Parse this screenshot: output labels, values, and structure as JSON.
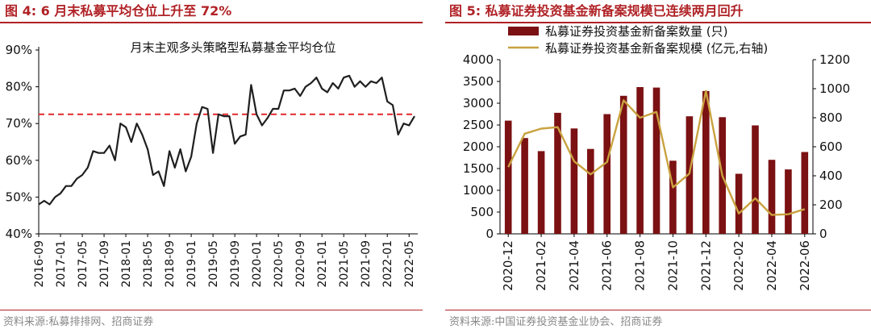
{
  "left_panel": {
    "figure_title": "图 4:  6 月末私募平均仓位上升至 72%",
    "source": "资料来源:私募排排网、招商证券"
  },
  "right_panel": {
    "figure_title": "图 5:  私募证券投资基金新备案规模已连续两月回升",
    "source": "资料来源:中国证券投资基金业协会、招商证券"
  },
  "colors": {
    "brand": "#b02226",
    "bar": "#7b1113",
    "line_gold": "#c9a23f",
    "line_dark": "#1f1f1f",
    "ref_line": "#e0282e"
  },
  "chart_data": [
    {
      "type": "line",
      "title": "月末主观多头策略型私募基金平均仓位",
      "ylim": [
        0.4,
        0.9
      ],
      "yticks": [
        "40%",
        "50%",
        "60%",
        "70%",
        "80%",
        "90%"
      ],
      "reference_line": 0.725,
      "xticklabels": [
        "2016-09",
        "2017-01",
        "2017-05",
        "2017-09",
        "2018-01",
        "2018-05",
        "2018-09",
        "2019-01",
        "2019-05",
        "2019-09",
        "2020-01",
        "2020-05",
        "2020-09",
        "2021-01",
        "2021-05",
        "2021-09",
        "2022-01",
        "2022-05"
      ],
      "start_month": "2016-09",
      "values": [
        0.48,
        0.49,
        0.48,
        0.5,
        0.51,
        0.53,
        0.53,
        0.55,
        0.56,
        0.58,
        0.625,
        0.62,
        0.62,
        0.64,
        0.6,
        0.7,
        0.69,
        0.65,
        0.7,
        0.67,
        0.63,
        0.56,
        0.57,
        0.53,
        0.625,
        0.58,
        0.63,
        0.57,
        0.61,
        0.7,
        0.745,
        0.74,
        0.62,
        0.725,
        0.72,
        0.72,
        0.645,
        0.665,
        0.67,
        0.805,
        0.725,
        0.695,
        0.715,
        0.74,
        0.74,
        0.79,
        0.79,
        0.795,
        0.775,
        0.8,
        0.81,
        0.825,
        0.795,
        0.785,
        0.81,
        0.795,
        0.825,
        0.83,
        0.8,
        0.815,
        0.8,
        0.815,
        0.81,
        0.825,
        0.76,
        0.75,
        0.67,
        0.7,
        0.695,
        0.72
      ]
    },
    {
      "type": "bar+line",
      "legend": [
        "私募证券投资基金新备案数量 (只)",
        "私募证券投资基金新备案规模 (亿元,右轴)"
      ],
      "categories": [
        "2020-12",
        "2021-01",
        "2021-02",
        "2021-03",
        "2021-04",
        "2021-05",
        "2021-06",
        "2021-07",
        "2021-08",
        "2021-09",
        "2021-10",
        "2021-11",
        "2021-12",
        "2022-01",
        "2022-02",
        "2022-03",
        "2022-04",
        "2022-05",
        "2022-06"
      ],
      "xticklabels": [
        "2020-12",
        "2021-02",
        "2021-04",
        "2021-06",
        "2021-08",
        "2021-10",
        "2021-12",
        "2022-02",
        "2022-04",
        "2022-06"
      ],
      "series": [
        {
          "name": "私募证券投资基金新备案数量 (只)",
          "axis": "left",
          "type": "bar",
          "values": [
            2600,
            2200,
            1900,
            2780,
            2420,
            1950,
            2750,
            3170,
            3370,
            3360,
            1680,
            2700,
            3280,
            2680,
            1380,
            2490,
            1700,
            1480,
            1880
          ]
        },
        {
          "name": "私募证券投资基金新备案规模 (亿元,右轴)",
          "axis": "right",
          "type": "line",
          "values": [
            460,
            690,
            725,
            735,
            500,
            410,
            495,
            920,
            800,
            840,
            320,
            415,
            985,
            400,
            140,
            245,
            130,
            135,
            170
          ]
        }
      ],
      "ylim_left": [
        0,
        4000
      ],
      "ylim_right": [
        0,
        1200
      ],
      "yticks_left": [
        "0",
        "500",
        "1000",
        "1500",
        "2000",
        "2500",
        "3000",
        "3500",
        "4000"
      ],
      "yticks_right": [
        "0",
        "200",
        "400",
        "600",
        "800",
        "1000",
        "1200"
      ]
    }
  ]
}
